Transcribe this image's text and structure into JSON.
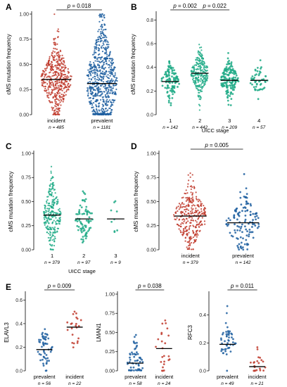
{
  "chart_data": [
    {
      "panel": "A",
      "type": "scatter",
      "ylabel": "cMS mutation frequency",
      "xlabel": "",
      "ylim": [
        0,
        1
      ],
      "yticks": [
        "0.00",
        "0.25",
        "0.50",
        "0.75",
        "1.00"
      ],
      "categories": [
        {
          "label": "incident",
          "n": "n = 485",
          "color": "#c0392b",
          "median": 0.35
        },
        {
          "label": "prevalent",
          "n": "n = 1181",
          "color": "#1f5fa0",
          "median": 0.31
        }
      ],
      "comparisons": [
        {
          "from": 0,
          "to": 1,
          "p": "0.018"
        }
      ]
    },
    {
      "panel": "B",
      "type": "scatter",
      "ylabel": "cMS mutation frequency",
      "xlabel": "UICC stage",
      "ylim": [
        0,
        0.85
      ],
      "yticks": [
        "0.0",
        "0.2",
        "0.4",
        "0.6",
        "0.8"
      ],
      "categories": [
        {
          "label": "1",
          "n": "n = 142",
          "color": "#1eaa86",
          "median": 0.28
        },
        {
          "label": "2",
          "n": "n = 442",
          "color": "#1eaa86",
          "median": 0.35
        },
        {
          "label": "3",
          "n": "n = 209",
          "color": "#1eaa86",
          "median": 0.29
        },
        {
          "label": "4",
          "n": "n = 57",
          "color": "#1eaa86",
          "median": 0.29
        }
      ],
      "comparisons": [
        {
          "from": 0,
          "to": 1,
          "p": "0.002"
        },
        {
          "from": 1,
          "to": 2,
          "p": "0.022"
        }
      ]
    },
    {
      "panel": "C",
      "type": "scatter",
      "ylabel": "cMS mutation frequency",
      "xlabel": "UICC stage",
      "ylim": [
        0,
        1
      ],
      "yticks": [
        "0.00",
        "0.25",
        "0.50",
        "0.75",
        "1.00"
      ],
      "categories": [
        {
          "label": "1",
          "n": "n = 379",
          "color": "#1eaa86",
          "median": 0.36
        },
        {
          "label": "2",
          "n": "n = 97",
          "color": "#1eaa86",
          "median": 0.32
        },
        {
          "label": "3",
          "n": "n = 9",
          "color": "#1eaa86",
          "median": 0.32
        }
      ],
      "comparisons": []
    },
    {
      "panel": "D",
      "type": "scatter",
      "ylabel": "cMS mutation frequency",
      "xlabel": "",
      "ylim": [
        0,
        1
      ],
      "yticks": [
        "0.00",
        "0.25",
        "0.50",
        "0.75",
        "1.00"
      ],
      "categories": [
        {
          "label": "incident",
          "n": "n = 379",
          "color": "#c0392b",
          "median": 0.35
        },
        {
          "label": "prevalent",
          "n": "n = 142",
          "color": "#1f5fa0",
          "median": 0.28
        }
      ],
      "comparisons": [
        {
          "from": 0,
          "to": 1,
          "p": "0.005"
        }
      ]
    },
    {
      "panel": "E",
      "type": "scatter",
      "ylabel": "ELAVL3",
      "xlabel": "",
      "ylim": [
        0,
        0.65
      ],
      "yticks": [
        "0.0",
        "0.2",
        "0.4",
        "0.6"
      ],
      "categories": [
        {
          "label": "prevalent",
          "n": "n = 56",
          "color": "#1f5fa0",
          "median": 0.18
        },
        {
          "label": "incident",
          "n": "n = 22",
          "color": "#c0392b",
          "median": 0.37
        }
      ],
      "comparisons": [
        {
          "from": 0,
          "to": 1,
          "p": "0.009"
        }
      ]
    },
    {
      "panel": "",
      "type": "scatter",
      "ylabel": "LMAN1",
      "xlabel": "",
      "ylim": [
        0,
        1
      ],
      "yticks": [
        "0.00",
        "0.25",
        "0.50",
        "0.75",
        "1.00"
      ],
      "categories": [
        {
          "label": "prevalent",
          "n": "n = 58",
          "color": "#1f5fa0",
          "median": 0.1
        },
        {
          "label": "incident",
          "n": "n = 24",
          "color": "#c0392b",
          "median": 0.29
        }
      ],
      "comparisons": [
        {
          "from": 0,
          "to": 1,
          "p": "0.038"
        }
      ]
    },
    {
      "panel": "",
      "type": "scatter",
      "ylabel": "RFC3",
      "xlabel": "",
      "ylim": [
        0,
        0.55
      ],
      "yticks": [
        "0.0",
        "0.2",
        "0.4"
      ],
      "categories": [
        {
          "label": "prevalent",
          "n": "n = 49",
          "color": "#1f5fa0",
          "median": 0.19
        },
        {
          "label": "incident",
          "n": "n = 21",
          "color": "#c0392b",
          "median": 0.03
        }
      ],
      "comparisons": [
        {
          "from": 0,
          "to": 1,
          "p": "0.011"
        }
      ]
    }
  ]
}
